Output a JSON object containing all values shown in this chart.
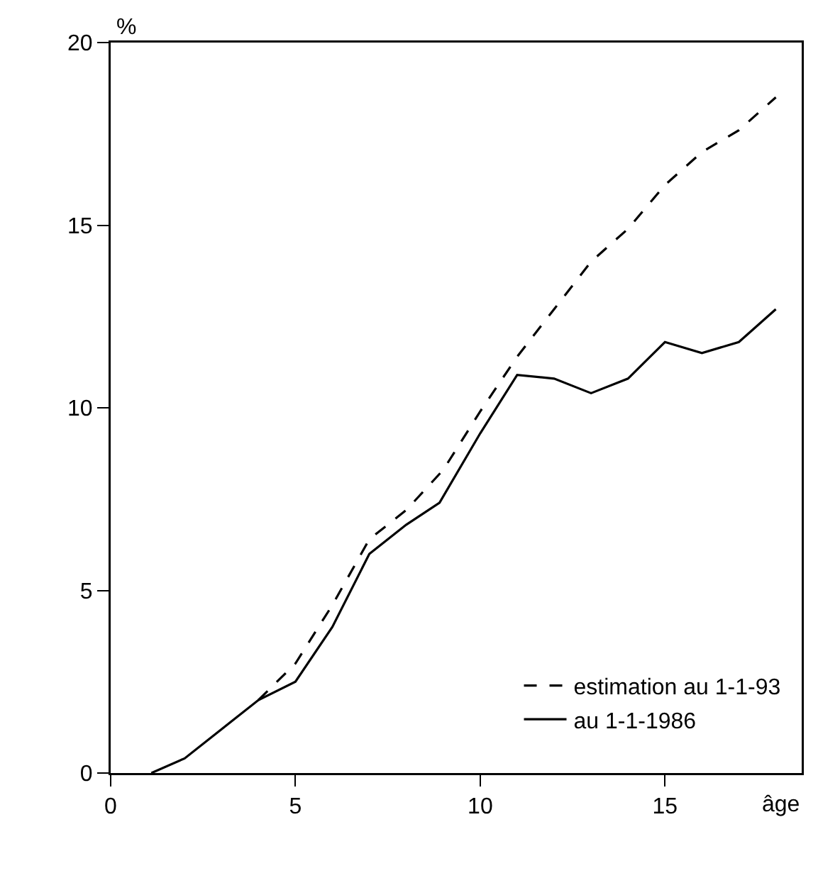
{
  "chart_data": {
    "type": "line",
    "xlabel": "âge",
    "ylabel": "%",
    "xlim": [
      0,
      18.7
    ],
    "xticks": [
      0,
      5,
      10,
      15
    ],
    "ylim": [
      0,
      20
    ],
    "yticks": [
      0,
      5,
      10,
      15,
      20
    ],
    "grid": false,
    "legend": "bottom right",
    "marker": "none",
    "series": [
      {
        "name": "estimation au 1-1-93",
        "color": "#000000",
        "line_style": "dashed",
        "x": [
          4,
          5,
          6,
          7,
          8,
          9,
          10,
          11,
          12,
          13,
          14,
          15,
          16,
          17,
          18
        ],
        "values": [
          2.0,
          3.0,
          4.6,
          6.4,
          7.2,
          8.3,
          9.9,
          11.4,
          12.7,
          14.0,
          14.9,
          16.1,
          17.0,
          17.6,
          18.5
        ]
      },
      {
        "name": "au 1-1-1986",
        "color": "#000000",
        "line_style": "solid",
        "x": [
          1.1,
          2,
          3,
          4,
          5,
          6,
          7,
          8,
          8.9,
          10,
          11,
          12,
          13,
          14,
          15,
          16,
          17,
          18
        ],
        "values": [
          0,
          0.4,
          1.2,
          2.0,
          2.5,
          4.0,
          6.0,
          6.8,
          7.4,
          9.3,
          10.9,
          10.8,
          10.4,
          10.8,
          11.8,
          11.5,
          11.8,
          12.7
        ]
      }
    ]
  }
}
